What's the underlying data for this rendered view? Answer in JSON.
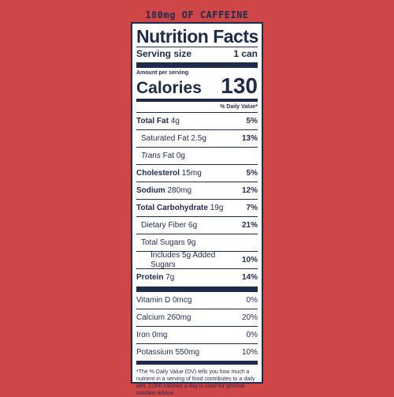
{
  "header": {
    "caffeine": "180mg OF CAFFEINE"
  },
  "label": {
    "title": "Nutrition Facts",
    "serving_size_label": "Serving size",
    "serving_size_value": "1 can",
    "amount_per_serving": "Amount per serving",
    "calories_label": "Calories",
    "calories_value": "130",
    "daily_value_header": "% Daily Value*",
    "rows": [
      {
        "name": "Total Fat",
        "amount": "4g",
        "dv": "5%"
      },
      {
        "name": "Saturated Fat",
        "amount": "2.5g",
        "dv": "13%"
      },
      {
        "name_italic": "Trans",
        "name": "Fat",
        "amount": "0g",
        "dv": ""
      },
      {
        "name": "Cholesterol",
        "amount": "15mg",
        "dv": "5%"
      },
      {
        "name": "Sodium",
        "amount": "280mg",
        "dv": "12%"
      },
      {
        "name": "Total Carbohydrate",
        "amount": "19g",
        "dv": "7%"
      },
      {
        "name": "Dietary Fiber",
        "amount": "6g",
        "dv": "21%"
      },
      {
        "name": "Total Sugars",
        "amount": "9g",
        "dv": ""
      },
      {
        "name": "Includes 5g Added Sugars",
        "amount": "",
        "dv": "10%"
      },
      {
        "name": "Protein",
        "amount": "7g",
        "dv": "14%"
      }
    ],
    "vitamins": [
      {
        "name": "Vitamin D",
        "amount": "0mcg",
        "dv": "0%"
      },
      {
        "name": "Calcium",
        "amount": "260mg",
        "dv": "20%"
      },
      {
        "name": "Iron",
        "amount": "0mg",
        "dv": "0%"
      },
      {
        "name": "Potassium",
        "amount": "550mg",
        "dv": "10%"
      }
    ],
    "footnote": "*The % Daily Value (DV) tells you how much a nutrient in a serving of food contributes to a daily diet. 2,000 calories a day is used for general nutrition advice."
  },
  "colors": {
    "background": "#cf4647",
    "ink": "#1f2b4d",
    "panel": "#ffffff"
  }
}
